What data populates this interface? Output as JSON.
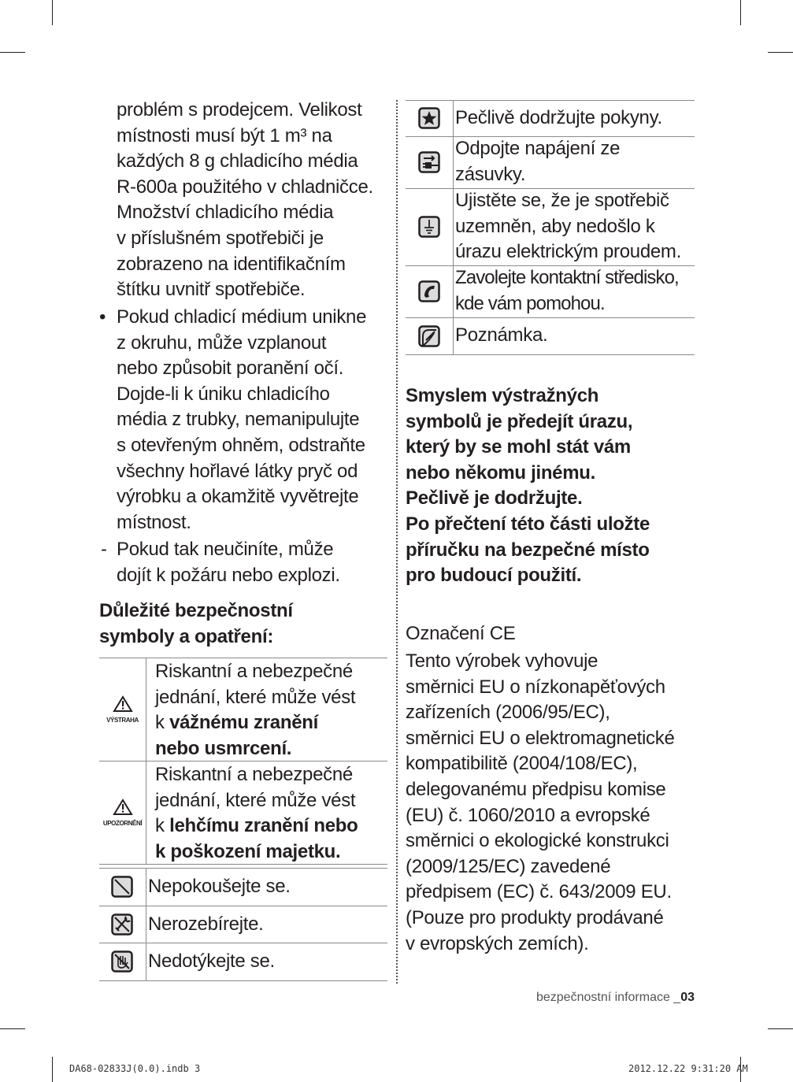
{
  "left": {
    "para1": [
      "problém s prodejcem. Velikost",
      "místnosti musí být 1 m³ na",
      "každých 8 g chladicího média",
      "R-600a použitého v chladničce.",
      "Množství chladicího média",
      "v příslušném spotřebiči je",
      "zobrazeno na identifikačním",
      "štítku uvnitř spotřebiče."
    ],
    "bullet_marker": "•",
    "bullet1": [
      "Pokud chladicí médium unikne",
      "z okruhu, může vzplanout",
      "nebo způsobit poranění očí.",
      "Dojde-li k úniku chladicího",
      "média z trubky, nemanipulujte",
      "s otevřeným ohněm, odstraňte",
      "všechny hořlavé látky pryč od",
      "výrobku a okamžitě vyvětrejte",
      "místnost."
    ],
    "dash_marker": "-",
    "dash1": [
      "Pokud tak neučiníte, může",
      "dojít k požáru nebo explozi."
    ],
    "heading": [
      "Důležité bezpečnostní",
      "symboly a opatření:"
    ],
    "warning_table": [
      {
        "icon": "warning-triangle-icon",
        "label": "VÝSTRAHA",
        "lines": [
          "Riskantní a nebezpečné",
          "jednání, které může vést",
          {
            "pre": "k ",
            "bold": "vážnému zranění"
          },
          {
            "pre": "",
            "bold": "nebo usmrcení."
          }
        ]
      },
      {
        "icon": "warning-triangle-icon",
        "label": "UPOZORNĚNÍ",
        "lines": [
          "Riskantní a nebezpečné",
          "jednání, které může vést",
          {
            "pre": "k ",
            "bold": "lehčímu zranění nebo"
          },
          {
            "pre": "",
            "bold": "k poškození majetku."
          }
        ]
      }
    ],
    "symbol_table": [
      {
        "icon": "prohibited-icon",
        "text": "Nepokoušejte se."
      },
      {
        "icon": "no-disassembly-icon",
        "text": "Nerozebírejte."
      },
      {
        "icon": "no-touch-icon",
        "text": "Nedotýkejte se."
      }
    ]
  },
  "right": {
    "symbol_table": [
      {
        "icon": "star-icon",
        "lines": [
          "Pečlivě dodržujte pokyny."
        ]
      },
      {
        "icon": "unplug-icon",
        "lines": [
          "Odpojte napájení ze",
          "zásuvky."
        ]
      },
      {
        "icon": "ground-icon",
        "lines": [
          "Ujistěte se, že je spotřebič",
          "uzemněn, aby nedošlo k",
          "úrazu elektrickým proudem."
        ]
      },
      {
        "icon": "phone-icon",
        "lines": [
          "Zavolejte kontaktní středisko,",
          "kde vám pomohou."
        ]
      },
      {
        "icon": "note-icon",
        "lines": [
          "Poznámka."
        ]
      }
    ],
    "bold_para": [
      "Smyslem výstražných",
      "symbolů je předejít úrazu,",
      "který by se mohl stát vám",
      "nebo někomu jinému.",
      "Pečlivě je dodržujte.",
      "Po přečtení této části uložte",
      "příručku na bezpečné místo",
      "pro budoucí použití."
    ],
    "ce_heading": "Označení CE",
    "ce_text": [
      "Tento výrobek vyhovuje",
      "směrnici EU o nízkonapěťových",
      "zařízeních (2006/95/EC),",
      "směrnici EU o elektromagnetické",
      "kompatibilitě (2004/108/EC),",
      "delegovanému předpisu komise",
      "(EU) č. 1060/2010 a evropské",
      "směrnici o ekologické konstrukci",
      "(2009/125/EC) zavedené",
      "předpisem (EC) č. 643/2009 EU.",
      "(Pouze pro produkty prodávané",
      "v evropských zemích)."
    ]
  },
  "footer": {
    "section": "bezpečnostní informace _",
    "page": "03"
  },
  "slug": {
    "file": "DA68-02833J(0.0).indb   3",
    "timestamp": "2012.12.22   9:31:20 AM"
  }
}
